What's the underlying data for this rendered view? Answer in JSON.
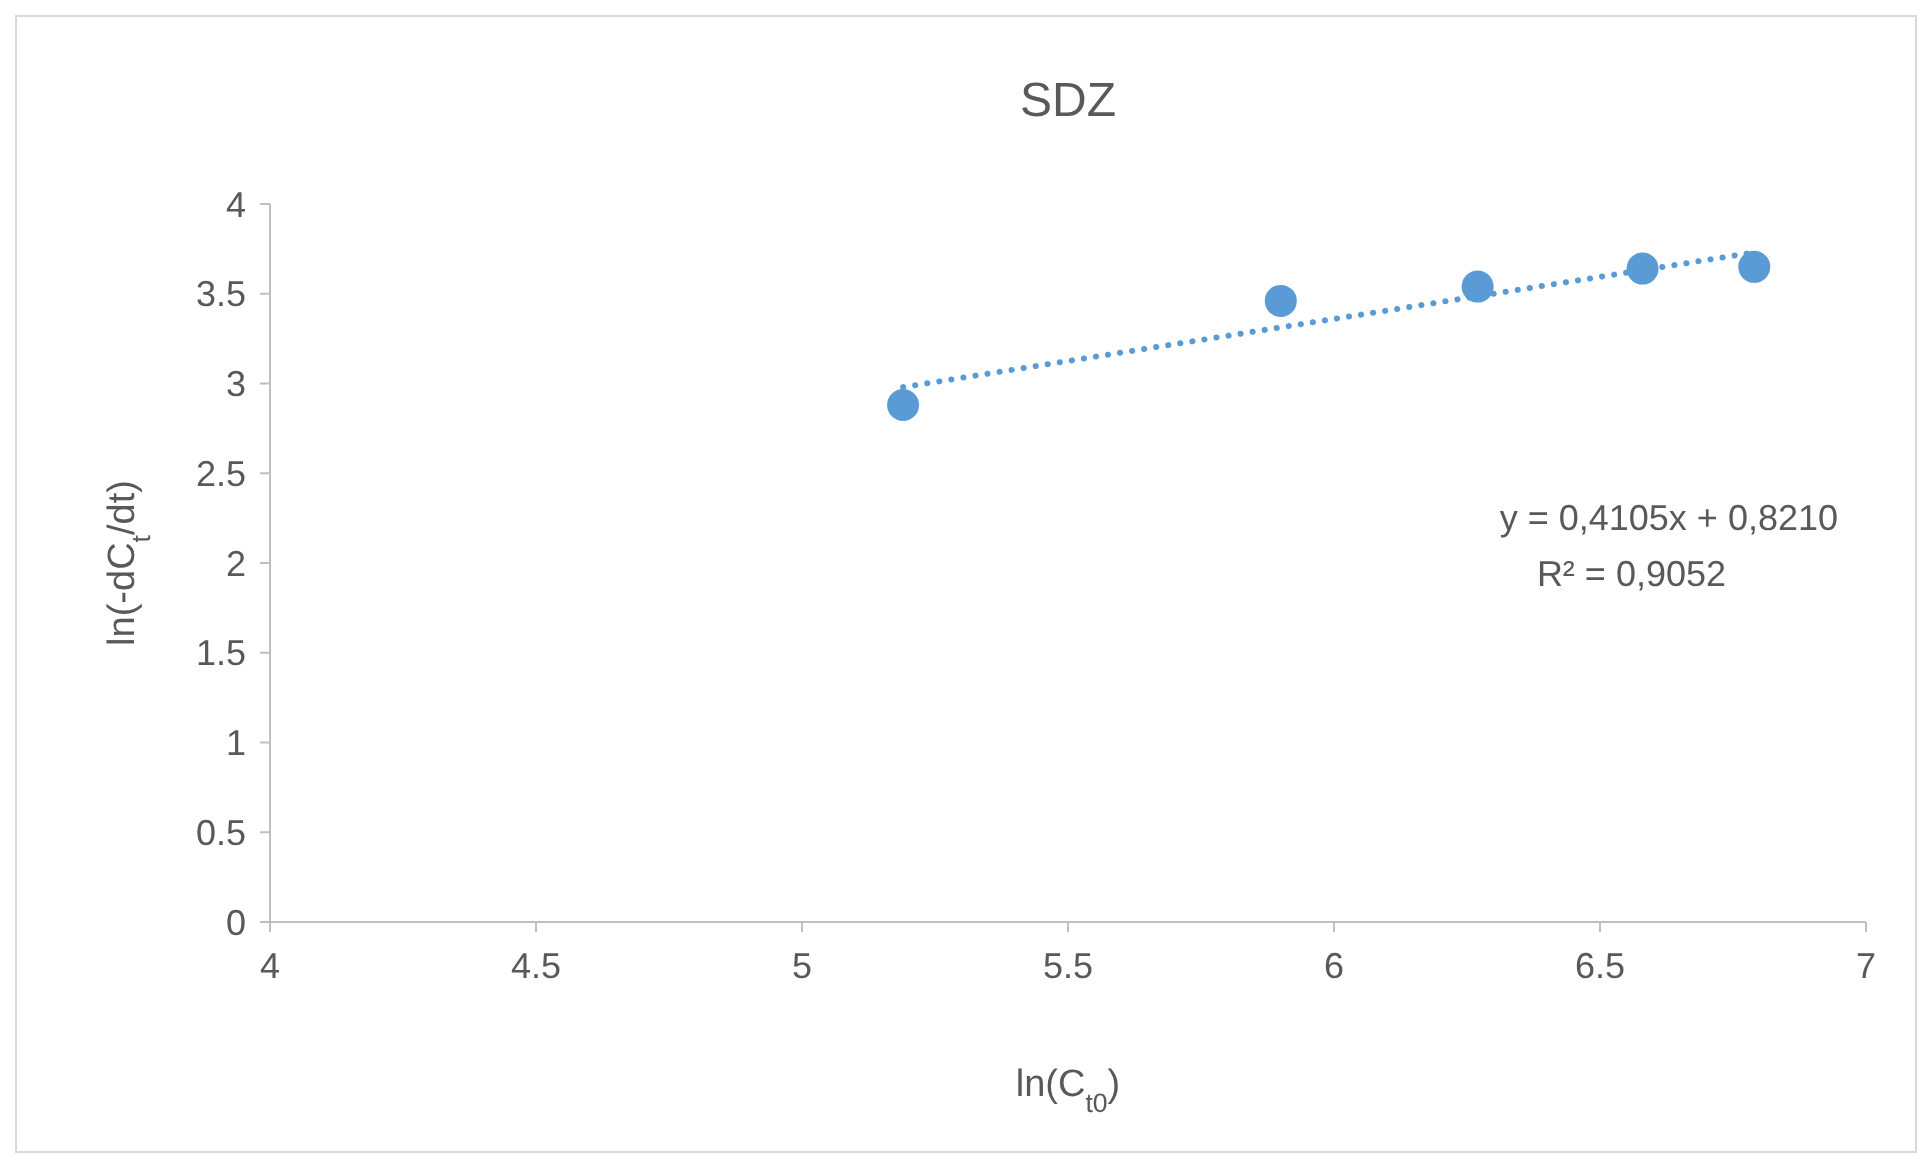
{
  "chart_data": {
    "type": "scatter",
    "title": "SDZ",
    "xlabel": "ln(C$_{t0}$)",
    "ylabel": "ln(-dC$_{t}$/dt)",
    "x": [
      5.19,
      5.9,
      6.27,
      6.58,
      6.79
    ],
    "series": [
      {
        "color": "#5b9bd5",
        "values": [
          2.88,
          3.46,
          3.54,
          3.64,
          3.65
        ],
        "marker": "circle"
      },
      {
        "type": "line",
        "color": "#5b9bd5",
        "x": [
          5.19,
          6.79
        ],
        "values": [
          2.98,
          3.73
        ],
        "line_style": "dotted",
        "marker": "none"
      }
    ],
    "xlim": [
      4,
      7
    ],
    "xticks": [
      4,
      4.5,
      5,
      5.5,
      6,
      6.5,
      7
    ],
    "ylim": [
      0,
      4
    ],
    "yticks": [
      0,
      0.5,
      1,
      1.5,
      2,
      2.5,
      3,
      3.5,
      4
    ],
    "annotations": [
      "y = 0,4105x + 0,8210",
      "R² = 0,9052"
    ],
    "grid": false
  }
}
